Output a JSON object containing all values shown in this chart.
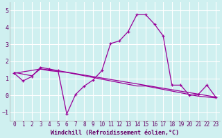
{
  "xlabel": "Windchill (Refroidissement éolien,°C)",
  "bg_color": "#cff0f0",
  "grid_color": "#ffffff",
  "line_color": "#990099",
  "xlim": [
    -0.5,
    23.5
  ],
  "ylim": [
    -1.5,
    5.5
  ],
  "yticks": [
    -1,
    0,
    1,
    2,
    3,
    4,
    5
  ],
  "xticks": [
    0,
    1,
    2,
    3,
    4,
    5,
    6,
    7,
    8,
    9,
    10,
    11,
    12,
    13,
    14,
    15,
    16,
    17,
    18,
    19,
    20,
    21,
    22,
    23
  ],
  "curve1_x": [
    0,
    1,
    2,
    3,
    4,
    5,
    6,
    7,
    8,
    9,
    10,
    11,
    12,
    13,
    14,
    15,
    16,
    17,
    18,
    19,
    20,
    21,
    22,
    23
  ],
  "curve1_y": [
    1.3,
    0.85,
    1.1,
    1.65,
    1.55,
    1.45,
    -1.1,
    0.05,
    0.55,
    0.9,
    1.45,
    3.05,
    3.2,
    3.75,
    4.75,
    4.75,
    4.2,
    3.5,
    0.6,
    0.6,
    0.0,
    0.05,
    0.6,
    -0.1
  ],
  "curve2_x": [
    0,
    1,
    2,
    3,
    4,
    5,
    6,
    7,
    8,
    9,
    10,
    11,
    12,
    13,
    14,
    15,
    16,
    17,
    18,
    19,
    20,
    21,
    22,
    23
  ],
  "curve2_y": [
    1.35,
    1.25,
    1.15,
    1.55,
    1.45,
    1.4,
    1.35,
    1.25,
    1.15,
    1.05,
    0.95,
    0.85,
    0.75,
    0.65,
    0.55,
    0.55,
    0.45,
    0.35,
    0.25,
    0.15,
    0.05,
    -0.05,
    -0.1,
    -0.15
  ],
  "curve3_x": [
    0,
    3,
    4,
    5,
    23
  ],
  "curve3_y": [
    1.3,
    1.55,
    1.5,
    1.45,
    -0.1
  ],
  "tick_fontsize": 5.5,
  "xlabel_fontsize": 6.0,
  "tick_color": "#660066",
  "xlabel_color": "#660066"
}
